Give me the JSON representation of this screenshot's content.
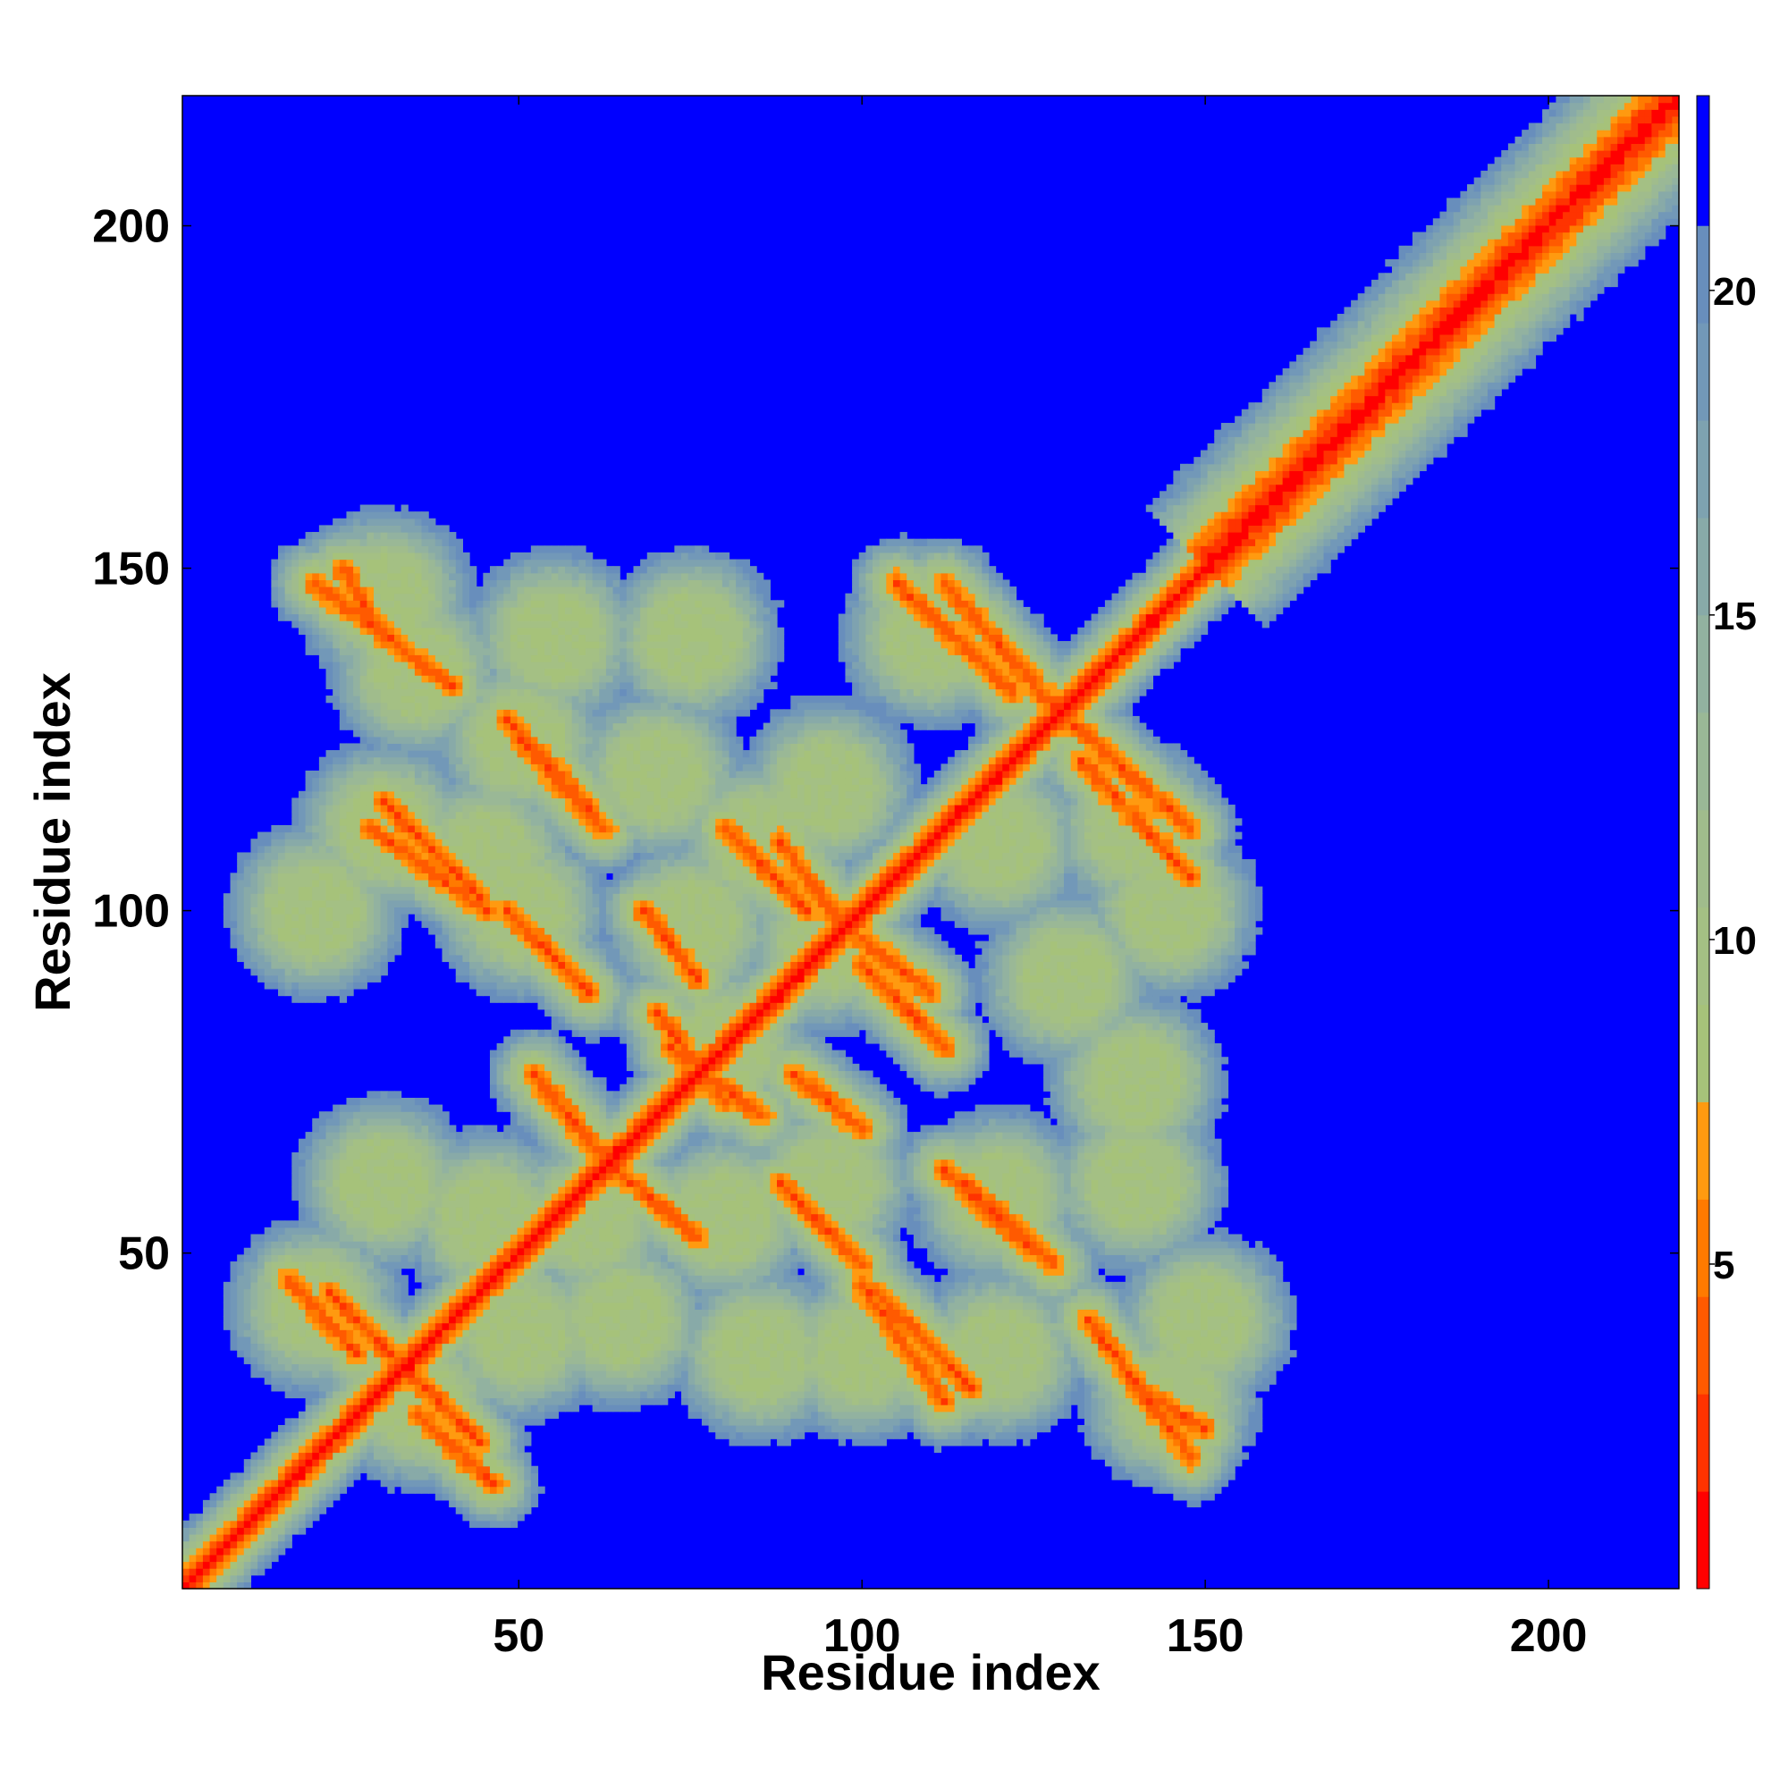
{
  "chart_data": {
    "type": "heatmap",
    "title": "",
    "xlabel": "Residue index",
    "ylabel": "Residue index",
    "xlim": [
      1,
      219
    ],
    "ylim": [
      1,
      219
    ],
    "xticks": [
      50,
      100,
      150,
      200
    ],
    "yticks": [
      50,
      100,
      150,
      200
    ],
    "colorbar": {
      "ticks": [
        5,
        10,
        15,
        20
      ],
      "range": [
        0,
        23
      ],
      "levels": [
        {
          "from": 0,
          "to": 1.5,
          "color": "#ff0000"
        },
        {
          "from": 1.5,
          "to": 3,
          "color": "#ff3300"
        },
        {
          "from": 3,
          "to": 4.5,
          "color": "#ff5a00"
        },
        {
          "from": 4.5,
          "to": 6,
          "color": "#ff7a00"
        },
        {
          "from": 6,
          "to": 7.5,
          "color": "#ff9a10"
        },
        {
          "from": 7.5,
          "to": 9,
          "color": "#a6c27a"
        },
        {
          "from": 9,
          "to": 10.5,
          "color": "#a4c084"
        },
        {
          "from": 10.5,
          "to": 12,
          "color": "#a0bc8c"
        },
        {
          "from": 12,
          "to": 13.5,
          "color": "#9ab896"
        },
        {
          "from": 13.5,
          "to": 15,
          "color": "#92b2a0"
        },
        {
          "from": 15,
          "to": 16.5,
          "color": "#88aaa8"
        },
        {
          "from": 16.5,
          "to": 18,
          "color": "#7ea2b0"
        },
        {
          "from": 18,
          "to": 19.5,
          "color": "#7298b8"
        },
        {
          "from": 19.5,
          "to": 21,
          "color": "#688ebc"
        },
        {
          "from": 21,
          "to": 23,
          "color": "#0000ff"
        }
      ]
    },
    "background_color": "#0000ff",
    "features": {
      "diagonal_band": {
        "from": 1,
        "to": 219
      },
      "antidiagonal_segments": [
        [
          [
            20,
            148
          ],
          [
            40,
            133
          ]
        ],
        [
          [
            28,
            112
          ],
          [
            45,
            100
          ]
        ],
        [
          [
            48,
            128
          ],
          [
            60,
            115
          ]
        ],
        [
          [
            48,
            100
          ],
          [
            60,
            88
          ]
        ],
        [
          [
            70,
            85
          ],
          [
            80,
            72
          ]
        ],
        [
          [
            88,
            110
          ],
          [
            98,
            97
          ]
        ],
        [
          [
            100,
            92
          ],
          [
            112,
            80
          ]
        ],
        [
          [
            112,
            62
          ],
          [
            125,
            50
          ]
        ],
        [
          [
            105,
            148
          ],
          [
            122,
            132
          ]
        ],
        [
          [
            130,
            128
          ],
          [
            148,
            112
          ]
        ],
        [
          [
            22,
            44
          ],
          [
            34,
            32
          ]
        ],
        [
          [
            35,
            26
          ],
          [
            46,
            16
          ]
        ],
        [
          [
            64,
            62
          ],
          [
            76,
            52
          ]
        ],
        [
          [
            90,
            76
          ],
          [
            100,
            68
          ]
        ],
        [
          [
            102,
            44
          ],
          [
            116,
            30
          ]
        ],
        [
          [
            140,
            30
          ],
          [
            150,
            24
          ]
        ]
      ],
      "blobs": [
        [
          30,
          146
        ],
        [
          30,
          112
        ],
        [
          20,
          100
        ],
        [
          45,
          108
        ],
        [
          50,
          100
        ],
        [
          50,
          125
        ],
        [
          70,
          120
        ],
        [
          75,
          98
        ],
        [
          80,
          80
        ],
        [
          85,
          110
        ],
        [
          95,
          118
        ],
        [
          95,
          95
        ],
        [
          120,
          110
        ],
        [
          140,
          112
        ],
        [
          145,
          100
        ],
        [
          130,
          90
        ],
        [
          140,
          75
        ],
        [
          140,
          60
        ],
        [
          120,
          58
        ],
        [
          95,
          60
        ],
        [
          80,
          55
        ],
        [
          60,
          55
        ],
        [
          45,
          55
        ],
        [
          30,
          60
        ],
        [
          20,
          42
        ],
        [
          35,
          28
        ],
        [
          50,
          38
        ],
        [
          65,
          40
        ],
        [
          85,
          35
        ],
        [
          100,
          35
        ],
        [
          120,
          35
        ],
        [
          145,
          28
        ],
        [
          150,
          40
        ],
        [
          110,
          140
        ],
        [
          75,
          140
        ],
        [
          55,
          140
        ],
        [
          35,
          135
        ]
      ]
    }
  }
}
